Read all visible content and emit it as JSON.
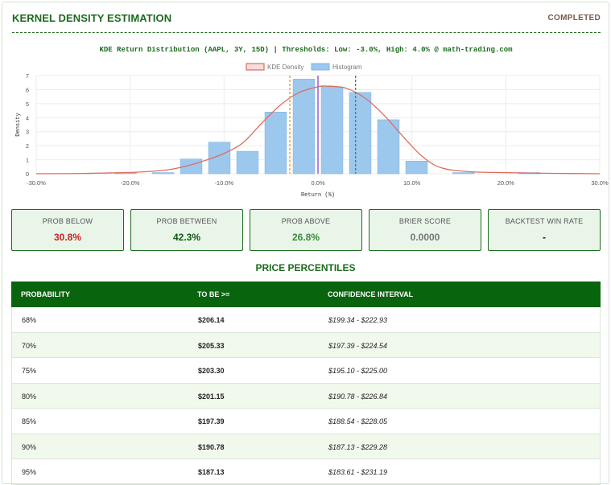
{
  "header": {
    "title": "KERNEL DENSITY ESTIMATION",
    "status": "COMPLETED"
  },
  "chart_data": {
    "type": "bar",
    "title": "KDE Return Distribution (AAPL, 3Y, 15D) | Thresholds: Low: -3.0%, High: 4.0% @ math-trading.com",
    "xlabel": "Return (%)",
    "ylabel": "Density",
    "xlim": [
      -30,
      30
    ],
    "ylim": [
      0,
      7
    ],
    "x_ticks": [
      -30,
      -20,
      -10,
      0,
      10,
      20,
      30
    ],
    "x_tick_labels": [
      "-30.0%",
      "-20.0%",
      "-10.0%",
      "0.0%",
      "10.0%",
      "20.0%",
      "30.0%"
    ],
    "y_ticks": [
      0,
      1,
      2,
      3,
      4,
      5,
      6,
      7
    ],
    "y_tick_labels": [
      "0",
      "1",
      "2",
      "3",
      "4",
      "5",
      "6",
      "7"
    ],
    "legend": {
      "position": "top-center",
      "entries": [
        "KDE Density",
        "Histogram"
      ]
    },
    "grid": true,
    "histogram": {
      "name": "Histogram",
      "color": "#9dc8ee",
      "bin_width": 2.3,
      "centers": [
        -20.5,
        -16.5,
        -13.5,
        -10.5,
        -7.5,
        -4.5,
        -1.5,
        1.5,
        4.5,
        7.5,
        10.5,
        15.5,
        22.5
      ],
      "values": [
        0.08,
        0.08,
        1.05,
        2.25,
        1.6,
        4.4,
        6.75,
        6.2,
        5.8,
        3.85,
        0.9,
        0.08,
        0.08
      ]
    },
    "kde": {
      "name": "KDE Density",
      "color": "#e06b5c",
      "x": [
        -30,
        -25,
        -22,
        -19,
        -16,
        -14,
        -12,
        -10,
        -8,
        -6,
        -4,
        -2,
        0,
        1,
        3,
        5,
        7,
        9,
        11,
        13,
        16,
        20,
        25,
        30
      ],
      "y": [
        0.0,
        0.02,
        0.06,
        0.12,
        0.28,
        0.55,
        0.95,
        1.45,
        2.2,
        3.6,
        4.9,
        5.8,
        6.2,
        6.25,
        6.1,
        5.4,
        4.2,
        2.7,
        1.3,
        0.45,
        0.15,
        0.08,
        0.03,
        0.0
      ]
    },
    "thresholds": [
      {
        "name": "Low",
        "x": -3.0,
        "color": "#e8a33c"
      },
      {
        "name": "Mean",
        "x": 0.0,
        "color": "#a066d6"
      },
      {
        "name": "High",
        "x": 4.0,
        "color": "#2c9b3c"
      }
    ]
  },
  "stats": [
    {
      "label": "PROB BELOW",
      "value": "30.8%",
      "color": "#cc2222"
    },
    {
      "label": "PROB BETWEEN",
      "value": "42.3%",
      "color": "#0d5a12"
    },
    {
      "label": "PROB ABOVE",
      "value": "26.8%",
      "color": "#3a8a3a"
    },
    {
      "label": "BRIER SCORE",
      "value": "0.0000",
      "color": "#777777"
    },
    {
      "label": "BACKTEST WIN RATE",
      "value": "-",
      "color": "#111111"
    }
  ],
  "percentiles": {
    "title": "PRICE PERCENTILES",
    "columns": [
      "PROBABILITY",
      "TO BE >=",
      "CONFIDENCE INTERVAL"
    ],
    "rows": [
      [
        "68%",
        "$206.14",
        "$199.34 - $222.93"
      ],
      [
        "70%",
        "$205.33",
        "$197.39 - $224.54"
      ],
      [
        "75%",
        "$203.30",
        "$195.10 - $225.00"
      ],
      [
        "80%",
        "$201.15",
        "$190.78 - $226.84"
      ],
      [
        "85%",
        "$197.39",
        "$188.54 - $228.05"
      ],
      [
        "90%",
        "$190.78",
        "$187.13 - $229.28"
      ],
      [
        "95%",
        "$187.13",
        "$183.61 - $231.19"
      ]
    ]
  }
}
